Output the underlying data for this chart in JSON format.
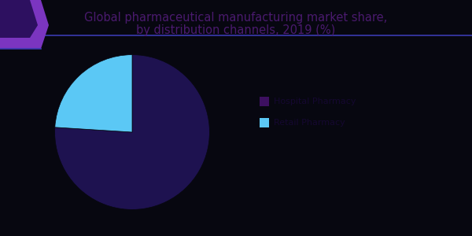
{
  "title_line1": "Global pharmaceutical manufacturing market share,",
  "title_line2": "by distribution channels, 2019 (%)",
  "title_color": "#4a1a6e",
  "title_fontsize": 10.5,
  "background_color": "#070710",
  "slice_colors": [
    "#1e1250",
    "#5bc8f5"
  ],
  "slice_values": [
    76,
    24
  ],
  "legend_colors": [
    "#3d1060",
    "#5bc8f5"
  ],
  "header_line_color": "#3a3ab0",
  "corner_outer_color": "#7b35c0",
  "corner_inner_color": "#2d1060"
}
